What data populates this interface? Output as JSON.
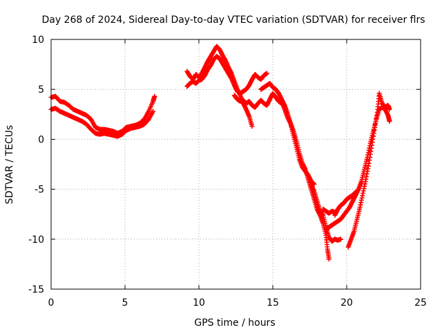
{
  "chart_data": {
    "type": "scatter",
    "title": "Day 268 of 2024, Sidereal Day-to-day VTEC variation (SDTVAR) for receiver flrs",
    "xlabel": "GPS time / hours",
    "ylabel": "SDTVAR / TECUs",
    "xlim": [
      0,
      25
    ],
    "ylim": [
      -15,
      10
    ],
    "xticks": [
      0,
      5,
      10,
      15,
      20,
      25
    ],
    "yticks": [
      -15,
      -10,
      -5,
      0,
      5,
      10
    ],
    "grid": true,
    "marker": "+",
    "color": "#ff0000",
    "series": [
      {
        "name": "SDTVAR",
        "points": [
          [
            0.0,
            4.2
          ],
          [
            0.3,
            4.3
          ],
          [
            0.6,
            3.8
          ],
          [
            0.9,
            3.7
          ],
          [
            1.2,
            3.4
          ],
          [
            1.5,
            3.0
          ],
          [
            1.8,
            2.8
          ],
          [
            2.1,
            2.6
          ],
          [
            2.4,
            2.4
          ],
          [
            2.7,
            2.0
          ],
          [
            3.0,
            1.2
          ],
          [
            3.3,
            1.0
          ],
          [
            3.6,
            1.0
          ],
          [
            3.9,
            0.9
          ],
          [
            4.2,
            0.8
          ],
          [
            4.5,
            0.6
          ],
          [
            4.8,
            0.8
          ],
          [
            5.1,
            1.2
          ],
          [
            5.4,
            1.3
          ],
          [
            5.7,
            1.4
          ],
          [
            6.0,
            1.6
          ],
          [
            6.3,
            2.0
          ],
          [
            6.6,
            2.8
          ],
          [
            6.9,
            3.8
          ],
          [
            7.0,
            4.3
          ],
          [
            0.0,
            3.0
          ],
          [
            0.3,
            3.1
          ],
          [
            0.6,
            2.8
          ],
          [
            0.9,
            2.6
          ],
          [
            1.2,
            2.4
          ],
          [
            1.5,
            2.2
          ],
          [
            1.8,
            2.0
          ],
          [
            2.1,
            1.8
          ],
          [
            2.4,
            1.5
          ],
          [
            2.7,
            1.0
          ],
          [
            3.0,
            0.6
          ],
          [
            3.3,
            0.5
          ],
          [
            3.6,
            0.6
          ],
          [
            3.9,
            0.5
          ],
          [
            4.2,
            0.4
          ],
          [
            4.5,
            0.3
          ],
          [
            4.8,
            0.5
          ],
          [
            5.1,
            0.9
          ],
          [
            5.4,
            1.1
          ],
          [
            5.7,
            1.2
          ],
          [
            6.0,
            1.3
          ],
          [
            6.3,
            1.5
          ],
          [
            6.6,
            2.0
          ],
          [
            6.9,
            2.8
          ],
          [
            9.2,
            6.8
          ],
          [
            9.4,
            6.3
          ],
          [
            9.6,
            6.0
          ],
          [
            9.8,
            6.5
          ],
          [
            10.0,
            6.2
          ],
          [
            10.2,
            6.6
          ],
          [
            10.4,
            7.2
          ],
          [
            10.6,
            7.8
          ],
          [
            10.8,
            8.3
          ],
          [
            11.0,
            8.8
          ],
          [
            11.2,
            9.3
          ],
          [
            11.4,
            9.0
          ],
          [
            11.6,
            8.4
          ],
          [
            11.8,
            7.9
          ],
          [
            12.0,
            7.2
          ],
          [
            12.2,
            6.6
          ],
          [
            12.4,
            5.8
          ],
          [
            12.6,
            5.0
          ],
          [
            12.8,
            4.4
          ],
          [
            13.0,
            3.6
          ],
          [
            13.2,
            3.0
          ],
          [
            13.4,
            2.3
          ],
          [
            13.6,
            1.3
          ],
          [
            9.2,
            5.3
          ],
          [
            9.4,
            5.6
          ],
          [
            9.6,
            5.8
          ],
          [
            9.8,
            5.6
          ],
          [
            10.0,
            5.9
          ],
          [
            10.2,
            6.0
          ],
          [
            10.4,
            6.4
          ],
          [
            10.6,
            7.0
          ],
          [
            10.8,
            7.4
          ],
          [
            11.0,
            8.0
          ],
          [
            11.2,
            8.3
          ],
          [
            11.4,
            8.1
          ],
          [
            11.6,
            7.6
          ],
          [
            11.8,
            7.1
          ],
          [
            12.0,
            6.6
          ],
          [
            12.2,
            6.1
          ],
          [
            12.4,
            5.4
          ],
          [
            12.6,
            4.8
          ],
          [
            12.8,
            4.6
          ],
          [
            13.0,
            4.8
          ],
          [
            13.2,
            5.0
          ],
          [
            13.4,
            5.4
          ],
          [
            13.6,
            6.0
          ],
          [
            13.8,
            6.5
          ],
          [
            14.0,
            6.2
          ],
          [
            14.2,
            6.0
          ],
          [
            14.4,
            6.4
          ],
          [
            14.6,
            6.6
          ],
          [
            12.4,
            4.4
          ],
          [
            12.6,
            4.0
          ],
          [
            12.8,
            3.8
          ],
          [
            13.0,
            3.9
          ],
          [
            13.2,
            3.6
          ],
          [
            13.4,
            3.8
          ],
          [
            13.6,
            3.4
          ],
          [
            13.8,
            3.2
          ],
          [
            14.0,
            3.6
          ],
          [
            14.2,
            3.9
          ],
          [
            14.4,
            3.6
          ],
          [
            14.6,
            3.4
          ],
          [
            14.8,
            4.0
          ],
          [
            15.0,
            4.6
          ],
          [
            15.2,
            4.2
          ],
          [
            15.4,
            3.8
          ],
          [
            15.6,
            3.6
          ],
          [
            15.8,
            3.3
          ],
          [
            14.2,
            5.0
          ],
          [
            14.4,
            5.2
          ],
          [
            14.6,
            5.4
          ],
          [
            14.8,
            5.6
          ],
          [
            15.0,
            5.2
          ],
          [
            15.2,
            5.0
          ],
          [
            15.4,
            4.6
          ],
          [
            15.6,
            4.0
          ],
          [
            15.8,
            3.4
          ],
          [
            16.0,
            2.6
          ],
          [
            16.2,
            1.6
          ],
          [
            16.4,
            0.8
          ],
          [
            16.6,
            -0.2
          ],
          [
            16.8,
            -1.4
          ],
          [
            17.0,
            -2.4
          ],
          [
            17.2,
            -3.0
          ],
          [
            17.4,
            -4.0
          ],
          [
            17.6,
            -5.0
          ],
          [
            17.8,
            -6.0
          ],
          [
            18.0,
            -7.0
          ],
          [
            18.2,
            -7.6
          ],
          [
            18.4,
            -8.4
          ],
          [
            18.6,
            -9.6
          ],
          [
            18.7,
            -11.0
          ],
          [
            18.8,
            -12.0
          ],
          [
            15.4,
            4.0
          ],
          [
            15.6,
            3.8
          ],
          [
            15.8,
            3.0
          ],
          [
            16.0,
            2.2
          ],
          [
            16.2,
            1.6
          ],
          [
            16.4,
            0.4
          ],
          [
            16.6,
            -0.8
          ],
          [
            16.8,
            -2.0
          ],
          [
            17.0,
            -2.8
          ],
          [
            17.2,
            -3.2
          ],
          [
            17.4,
            -3.6
          ],
          [
            17.6,
            -4.2
          ],
          [
            17.8,
            -4.5
          ],
          [
            17.6,
            -4.6
          ],
          [
            17.8,
            -5.2
          ],
          [
            18.0,
            -6.2
          ],
          [
            18.2,
            -7.2
          ],
          [
            18.4,
            -7.6
          ],
          [
            18.6,
            -8.8
          ],
          [
            18.8,
            -9.8
          ],
          [
            19.0,
            -10.2
          ],
          [
            19.2,
            -10.0
          ],
          [
            19.4,
            -10.1
          ],
          [
            19.6,
            -10.0
          ],
          [
            18.4,
            -7.0
          ],
          [
            18.6,
            -7.2
          ],
          [
            18.8,
            -7.4
          ],
          [
            19.0,
            -7.2
          ],
          [
            19.2,
            -7.3
          ],
          [
            18.6,
            -9.0
          ],
          [
            18.8,
            -8.8
          ],
          [
            19.0,
            -8.6
          ],
          [
            19.2,
            -8.4
          ],
          [
            19.4,
            -8.2
          ],
          [
            19.6,
            -8.0
          ],
          [
            19.8,
            -7.6
          ],
          [
            20.0,
            -7.2
          ],
          [
            20.2,
            -6.8
          ],
          [
            20.4,
            -6.2
          ],
          [
            20.6,
            -5.6
          ],
          [
            20.8,
            -5.0
          ],
          [
            21.0,
            -4.2
          ],
          [
            21.2,
            -3.0
          ],
          [
            21.4,
            -1.8
          ],
          [
            21.6,
            -0.4
          ],
          [
            21.8,
            0.8
          ],
          [
            22.0,
            2.0
          ],
          [
            22.2,
            3.0
          ],
          [
            22.4,
            3.2
          ],
          [
            22.6,
            3.0
          ],
          [
            22.8,
            2.4
          ],
          [
            22.9,
            1.8
          ],
          [
            19.2,
            -7.6
          ],
          [
            19.4,
            -7.0
          ],
          [
            19.6,
            -6.6
          ],
          [
            19.8,
            -6.4
          ],
          [
            20.0,
            -6.0
          ],
          [
            20.2,
            -5.8
          ],
          [
            20.4,
            -5.6
          ],
          [
            20.6,
            -5.3
          ],
          [
            20.1,
            -10.8
          ],
          [
            20.3,
            -10.0
          ],
          [
            20.5,
            -9.2
          ],
          [
            20.7,
            -8.0
          ],
          [
            20.9,
            -6.8
          ],
          [
            21.1,
            -5.4
          ],
          [
            21.3,
            -4.0
          ],
          [
            21.5,
            -2.4
          ],
          [
            21.7,
            -0.6
          ],
          [
            21.9,
            1.2
          ],
          [
            22.1,
            3.0
          ],
          [
            22.2,
            4.6
          ],
          [
            22.4,
            3.6
          ],
          [
            22.6,
            3.2
          ],
          [
            22.8,
            3.4
          ],
          [
            22.9,
            3.0
          ]
        ]
      }
    ]
  }
}
